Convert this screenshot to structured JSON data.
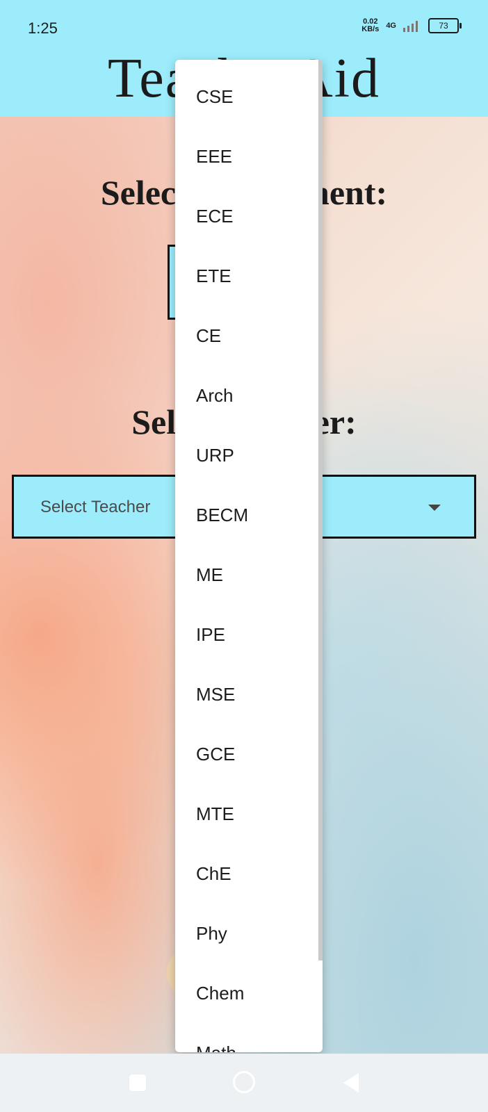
{
  "status_bar": {
    "time": "1:25",
    "net_speed_value": "0.02",
    "net_speed_unit": "KB/s",
    "network": "4G",
    "battery": "73"
  },
  "header": {
    "title": "TeacherAid"
  },
  "main": {
    "dept_label": "Select Department:",
    "teacher_label": "Select Teacher:",
    "teacher_placeholder": "Select Teacher"
  },
  "dropdown": {
    "items": [
      "CSE",
      "EEE",
      "ECE",
      "ETE",
      "CE",
      "Arch",
      "URP",
      "BECM",
      "ME",
      "IPE",
      "MSE",
      "GCE",
      "MTE",
      "ChE",
      "Phy",
      "Chem",
      "Math"
    ]
  },
  "nav_bar": {
    "icons": [
      "recent-apps-icon",
      "home-icon",
      "back-icon"
    ]
  }
}
